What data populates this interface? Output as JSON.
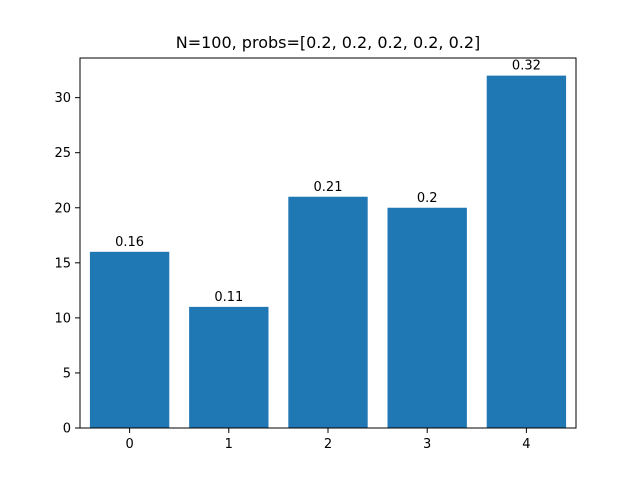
{
  "chart_data": {
    "type": "bar",
    "title": "N=100, probs=[0.2, 0.2, 0.2, 0.2, 0.2]",
    "xlabel": "",
    "ylabel": "",
    "categories": [
      "0",
      "1",
      "2",
      "3",
      "4"
    ],
    "values": [
      16,
      11,
      21,
      20,
      32
    ],
    "bar_labels": [
      "0.16",
      "0.11",
      "0.21",
      "0.2",
      "0.32"
    ],
    "ylim": [
      0,
      33.6
    ],
    "xlim": [
      -0.5,
      4.5
    ],
    "yticks": [
      0,
      5,
      10,
      15,
      20,
      25,
      30
    ],
    "grid": false,
    "legend": false,
    "colors": {
      "bar": "#1f77b4",
      "axis": "#000000",
      "background": "#ffffff"
    }
  }
}
